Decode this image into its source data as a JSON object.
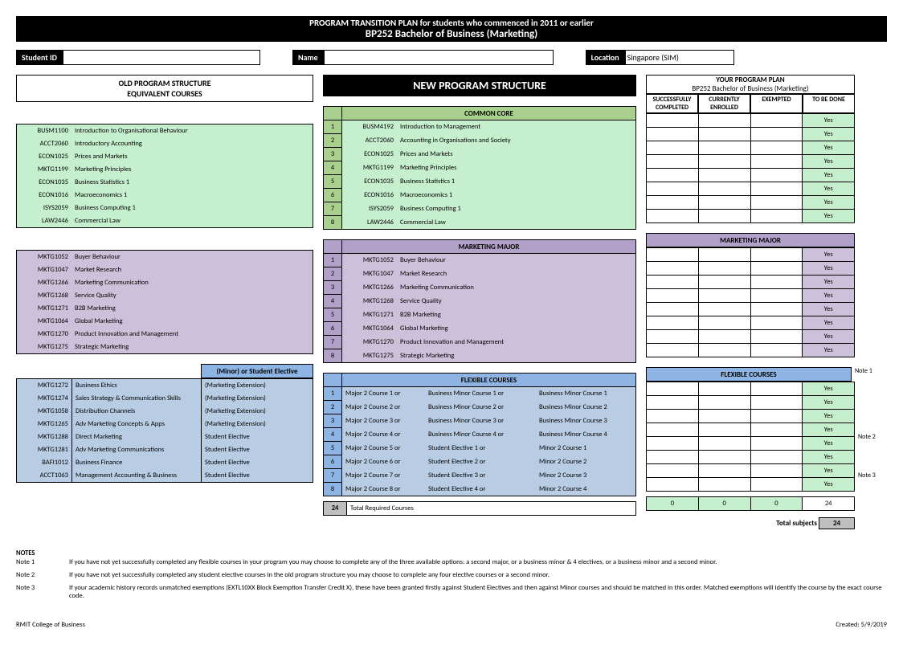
{
  "title1": "PROGRAM TRANSITION PLAN for students who commenced in 2011 or earlier",
  "title2": "BP252 Bachelor of Business (Marketing)",
  "labels": {
    "studentId": "Student ID",
    "name": "Name",
    "location": "Location",
    "locationVal": "Singapore (SIM)"
  },
  "oldHead1": "OLD PROGRAM STRUCTURE",
  "oldHead2": "EQUIVALENT COURSES",
  "newHead": "NEW PROGRAM STRUCTURE",
  "planHead1": "YOUR PROGRAM PLAN",
  "planHead2": "BP252 Bachelor of Business (Marketing)",
  "planCols": [
    "SUCCESSFULLY COMPLETED",
    "CURRENTLY ENROLLED",
    "EXEMPTED",
    "TO BE DONE"
  ],
  "sec": {
    "common": "COMMON CORE",
    "major": "MARKETING MAJOR",
    "flex": "FLEXIBLE COURSES",
    "elective": "(Minor) or Student Elective"
  },
  "totalReq": "Total Required Courses",
  "totalReqN": "24",
  "totals": [
    "0",
    "0",
    "0",
    "24"
  ],
  "totalSubj": "Total subjects",
  "totalSubjN": "24",
  "sideNotes": [
    "Note 1",
    "Note 2",
    "Note 3"
  ],
  "oldCommon": [
    [
      "BUSM1100",
      "Introduction to Organisational Behaviour"
    ],
    [
      "ACCT2060",
      "Introductory Accounting"
    ],
    [
      "ECON1025",
      "Prices and Markets"
    ],
    [
      "MKTG1199",
      "Marketing Principles"
    ],
    [
      "ECON1035",
      "Business Statistics 1"
    ],
    [
      "ECON1016",
      "Macroeconomics 1"
    ],
    [
      "ISYS2059",
      "Business Computing 1"
    ],
    [
      "LAW2446",
      "Commercial Law"
    ]
  ],
  "newCommon": [
    [
      "BUSM4192",
      "Introduction to Management"
    ],
    [
      "ACCT2060",
      "Accounting in Organisations and Society"
    ],
    [
      "ECON1025",
      "Prices and Markets"
    ],
    [
      "MKTG1199",
      "Marketing Principles"
    ],
    [
      "ECON1035",
      "Business Statistics 1"
    ],
    [
      "ECON1016",
      "Macroeconomics 1"
    ],
    [
      "ISYS2059",
      "Business Computing 1"
    ],
    [
      "LAW2446",
      "Commercial Law"
    ]
  ],
  "oldMajor": [
    [
      "MKTG1052",
      "Buyer Behaviour"
    ],
    [
      "MKTG1047",
      "Market Research"
    ],
    [
      "MKTG1266",
      "Marketing Communication"
    ],
    [
      "MKTG1268",
      "Service Quality"
    ],
    [
      "MKTG1271",
      "B2B Marketing"
    ],
    [
      "MKTG1064",
      "Global Marketing"
    ],
    [
      "MKTG1270",
      "Product Innovation and Management"
    ],
    [
      "MKTG1275",
      "Strategic Marketing"
    ]
  ],
  "newMajor": [
    [
      "MKTG1052",
      "Buyer Behaviour"
    ],
    [
      "MKTG1047",
      "Market Research"
    ],
    [
      "MKTG1266",
      "Marketing Communication"
    ],
    [
      "MKTG1268",
      "Service Quality"
    ],
    [
      "MKTG1271",
      "B2B Marketing"
    ],
    [
      "MKTG1064",
      "Global Marketing"
    ],
    [
      "MKTG1270",
      "Product Innovation and Management"
    ],
    [
      "MKTG1275",
      "Strategic Marketing"
    ]
  ],
  "oldFlex": [
    [
      "MKTG1272",
      "Business Ethics",
      "(Marketing Extension)"
    ],
    [
      "MKTG1274",
      "Sales Strategy & Communication Skills",
      "(Marketing Extension)"
    ],
    [
      "MKTG1058",
      "Distribution Channels",
      "(Marketing Extension)"
    ],
    [
      "MKTG1265",
      "Adv Marketing Concepts & Apps",
      "(Marketing Extension)"
    ],
    [
      "MKTG1288",
      "Direct Marketing",
      "Student Elective"
    ],
    [
      "MKTG1281",
      "Adv Marketing Communications",
      "Student Elective"
    ],
    [
      "BAFI1012",
      "Business Finance",
      "Student Elective"
    ],
    [
      "ACCT1063",
      "Management Accounting & Business",
      "Student Elective"
    ]
  ],
  "newFlex": [
    [
      "Major 2 Course 1 or",
      "Business Minor Course 1 or",
      "Business Minor Course 1"
    ],
    [
      "Major 2 Course 2 or",
      "Business Minor Course 2 or",
      "Business Minor Course 2"
    ],
    [
      "Major 2 Course 3 or",
      "Business Minor Course 3 or",
      "Business Minor Course 3"
    ],
    [
      "Major 2 Course 4 or",
      "Business Minor Course 4 or",
      "Business Minor Course 4"
    ],
    [
      "Major 2 Course 5 or",
      "Student Elective 1 or",
      "Minor 2 Course 1"
    ],
    [
      "Major 2 Course 6 or",
      "Student Elective 2 or",
      "Minor 2 Course 2"
    ],
    [
      "Major 2 Course 7 or",
      "Student Elective 3 or",
      "Minor 2 Course 3"
    ],
    [
      "Major 2 Course 8 or",
      "Student Elective 4 or",
      "Minor 2 Course 4"
    ]
  ],
  "colors": {
    "green": "#c6efce",
    "greenD": "#a9d08e",
    "purple": "#ccc0da",
    "purpleD": "#b1a0c7",
    "blue": "#b8cce4",
    "blueD": "#8db4e2",
    "gray": "#bfbfbf"
  },
  "notesTitle": "NOTES",
  "notes": [
    [
      "Note 1",
      "If you have not yet successfully completed any flexible courses in your program you may choose to complete any of the three available options:  a second major, or a business minor & 4 electives, or a business minor and a second minor."
    ],
    [
      "Note 2",
      "If you have not yet successfully completed any student elective courses in the old program structure you may choose to complete any four elective courses or a second minor."
    ],
    [
      "Note 3",
      "If your academic history records unmatched exemptions (EXTL10XX Block Exemption Transfer Credit X), these have been granted firstly against Student Electives and then against Minor courses and should be matched in this order. Matched exemptions will identify the course by the exact course code."
    ]
  ],
  "footerL": "RMIT College of Business",
  "footerR": "Created: 5/9/2019",
  "yes": "Yes"
}
